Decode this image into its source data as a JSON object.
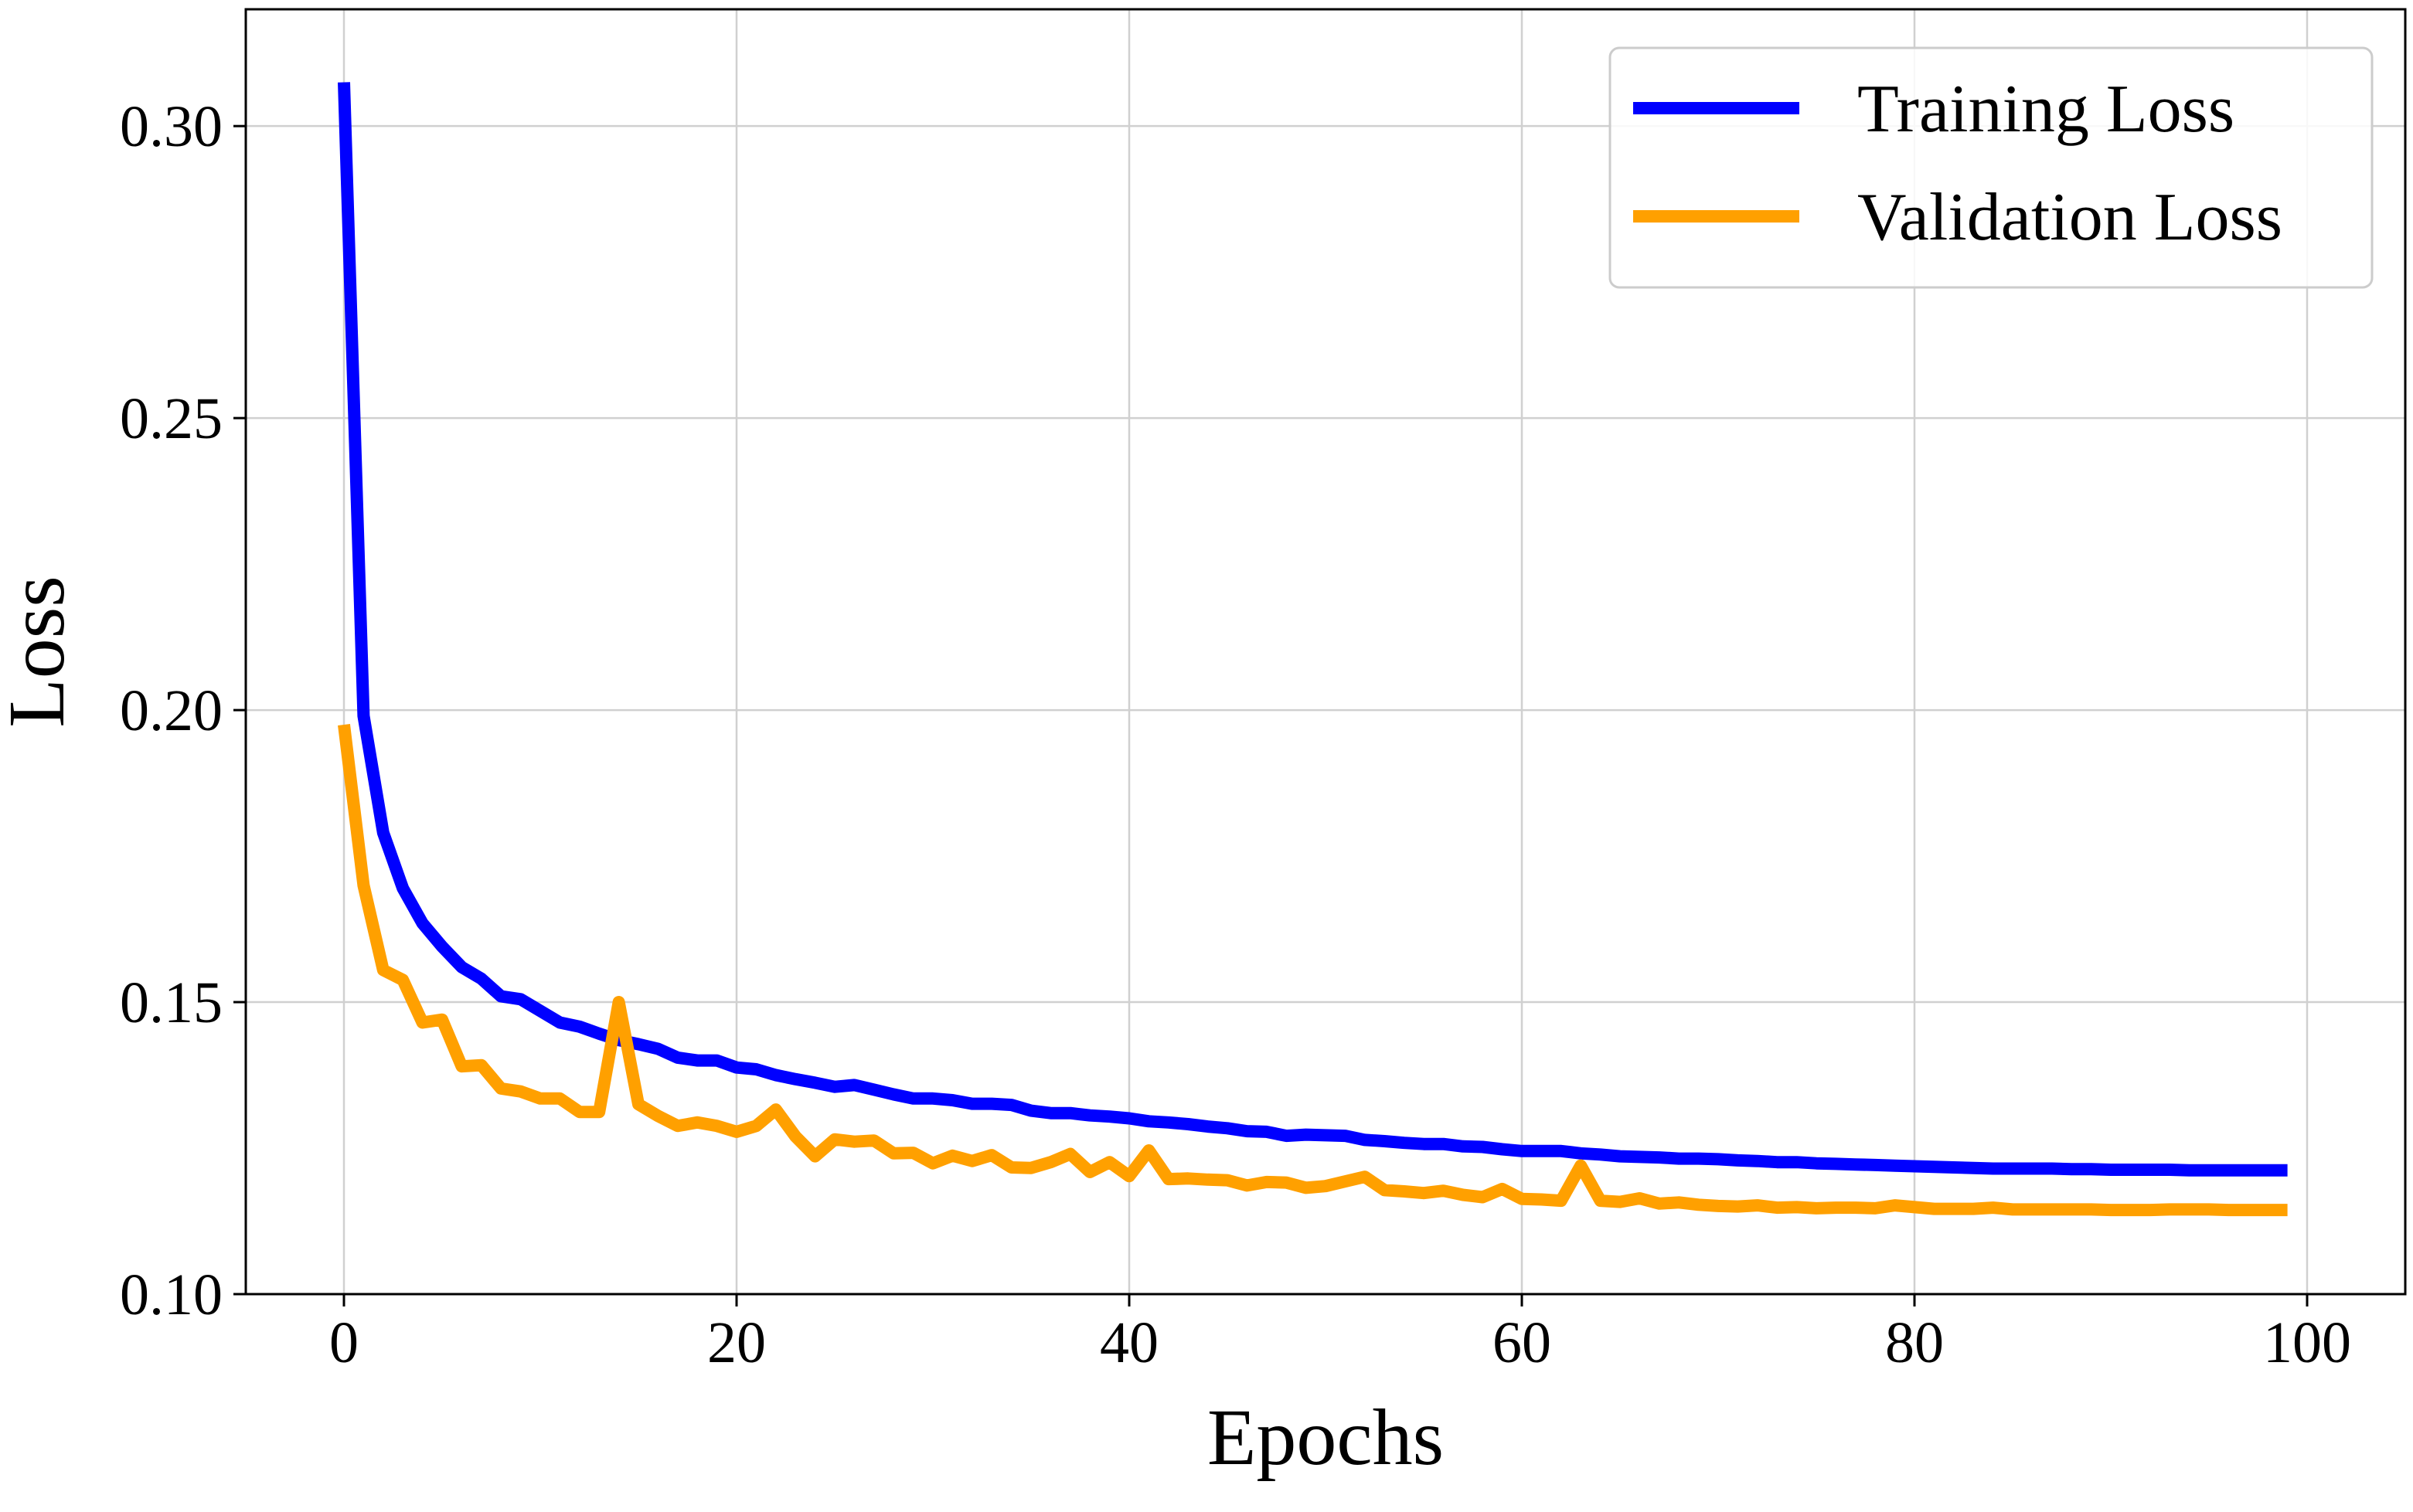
{
  "chart_data": {
    "type": "line",
    "title": "",
    "xlabel": "Epochs",
    "ylabel": "Loss",
    "xlim": [
      -5,
      105
    ],
    "ylim": [
      0.1,
      0.32
    ],
    "xticks": [
      0,
      20,
      40,
      60,
      80,
      100
    ],
    "xtick_labels": [
      "0",
      "20",
      "40",
      "60",
      "80",
      "100"
    ],
    "yticks": [
      0.1,
      0.15,
      0.2,
      0.25,
      0.3
    ],
    "ytick_labels": [
      "0.10",
      "0.15",
      "0.20",
      "0.25",
      "0.30"
    ],
    "grid": true,
    "legend_position": "top-right",
    "x": [
      0,
      1,
      2,
      3,
      4,
      5,
      6,
      7,
      8,
      9,
      10,
      11,
      12,
      13,
      14,
      15,
      16,
      17,
      18,
      19,
      20,
      21,
      22,
      23,
      24,
      25,
      26,
      27,
      28,
      29,
      30,
      31,
      32,
      33,
      34,
      35,
      36,
      37,
      38,
      39,
      40,
      41,
      42,
      43,
      44,
      45,
      46,
      47,
      48,
      49,
      50,
      51,
      52,
      53,
      54,
      55,
      56,
      57,
      58,
      59,
      60,
      61,
      62,
      63,
      64,
      65,
      66,
      67,
      68,
      69,
      70,
      71,
      72,
      73,
      74,
      75,
      76,
      77,
      78,
      79,
      80,
      81,
      82,
      83,
      84,
      85,
      86,
      87,
      88,
      89,
      90,
      91,
      92,
      93,
      94,
      95,
      96,
      97,
      98,
      99
    ],
    "series": [
      {
        "name": "Training Loss",
        "color": "#0000ff",
        "values": [
          0.3075,
          0.199,
          0.179,
          0.1695,
          0.1635,
          0.1595,
          0.156,
          0.154,
          0.151,
          0.1505,
          0.1485,
          0.1465,
          0.1458,
          0.1446,
          0.1435,
          0.1428,
          0.142,
          0.1405,
          0.14,
          0.14,
          0.1388,
          0.1385,
          0.1375,
          0.1368,
          0.1362,
          0.1355,
          0.1358,
          0.135,
          0.1342,
          0.1335,
          0.1335,
          0.1332,
          0.1326,
          0.1326,
          0.1324,
          0.1314,
          0.131,
          0.131,
          0.1306,
          0.1304,
          0.1301,
          0.1296,
          0.1294,
          0.1291,
          0.1287,
          0.1284,
          0.1279,
          0.1278,
          0.1271,
          0.1273,
          0.1272,
          0.1271,
          0.1264,
          0.1262,
          0.1259,
          0.1257,
          0.1257,
          0.1253,
          0.1252,
          0.1248,
          0.1245,
          0.1245,
          0.1245,
          0.1241,
          0.1239,
          0.1236,
          0.1235,
          0.1234,
          0.1232,
          0.1232,
          0.1231,
          0.1229,
          0.1228,
          0.1226,
          0.1226,
          0.1224,
          0.1223,
          0.1222,
          0.1221,
          0.122,
          0.1219,
          0.1218,
          0.1217,
          0.1216,
          0.1215,
          0.1215,
          0.1215,
          0.1215,
          0.1214,
          0.1214,
          0.1213,
          0.1213,
          0.1213,
          0.1213,
          0.1212,
          0.1212,
          0.1212,
          0.1212,
          0.1212,
          0.1212
        ]
      },
      {
        "name": "Validation Loss",
        "color": "#ffa000",
        "values": [
          0.1975,
          0.17,
          0.1555,
          0.1538,
          0.1465,
          0.147,
          0.139,
          0.1392,
          0.1352,
          0.1347,
          0.1335,
          0.1335,
          0.1312,
          0.1312,
          0.15,
          0.1325,
          0.1305,
          0.1288,
          0.1294,
          0.1288,
          0.1278,
          0.1288,
          0.1316,
          0.127,
          0.1236,
          0.1265,
          0.1261,
          0.1263,
          0.1241,
          0.1242,
          0.1224,
          0.1237,
          0.1228,
          0.1238,
          0.1217,
          0.1216,
          0.1226,
          0.124,
          0.1209,
          0.1226,
          0.1202,
          0.1246,
          0.1197,
          0.1198,
          0.1196,
          0.1195,
          0.1186,
          0.1192,
          0.1191,
          0.1182,
          0.1185,
          0.1193,
          0.1201,
          0.1178,
          0.1176,
          0.1173,
          0.1177,
          0.117,
          0.1166,
          0.118,
          0.1163,
          0.1162,
          0.116,
          0.122,
          0.116,
          0.1158,
          0.1164,
          0.1155,
          0.1157,
          0.1153,
          0.1151,
          0.115,
          0.1152,
          0.1148,
          0.1149,
          0.1147,
          0.1148,
          0.1148,
          0.1147,
          0.1152,
          0.1149,
          0.1146,
          0.1146,
          0.1146,
          0.1148,
          0.1145,
          0.1145,
          0.1145,
          0.1145,
          0.1145,
          0.1144,
          0.1144,
          0.1144,
          0.1145,
          0.1145,
          0.1145,
          0.1144,
          0.1144,
          0.1144,
          0.1144
        ]
      }
    ]
  }
}
